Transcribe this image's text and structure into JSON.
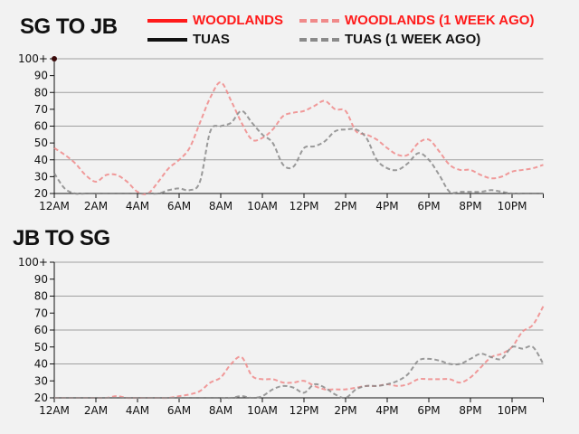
{
  "legend": [
    {
      "label": "WOODLANDS",
      "color": "#ff1a1a",
      "style": "solid"
    },
    {
      "label": "WOODLANDS (1 WEEK AGO)",
      "color": "#f08a8a",
      "style": "dashed"
    },
    {
      "label": "TUAS",
      "color": "#111111",
      "style": "solid"
    },
    {
      "label": "TUAS (1 WEEK AGO)",
      "color": "#8a8a8a",
      "style": "dashed"
    }
  ],
  "chart_data": [
    {
      "type": "line",
      "title": "SG TO JB",
      "xlabel": "",
      "ylabel": "",
      "x_unit": "hour of day",
      "x": [
        0,
        0.5,
        1,
        1.5,
        2,
        2.5,
        3,
        3.5,
        4,
        4.5,
        5,
        5.5,
        6,
        6.5,
        7,
        7.5,
        8,
        8.5,
        9,
        9.5,
        10,
        10.5,
        11,
        11.5,
        12,
        12.5,
        13,
        13.5,
        14,
        14.5,
        15,
        15.5,
        16,
        16.5,
        17,
        17.5,
        18,
        18.5,
        19,
        19.5,
        20,
        20.5,
        21,
        21.5,
        22,
        22.5,
        23,
        23.5
      ],
      "xticks": [
        "12AM",
        "2AM",
        "4AM",
        "6AM",
        "8AM",
        "10AM",
        "12PM",
        "2PM",
        "4PM",
        "6PM",
        "8PM",
        "10PM"
      ],
      "yticks": [
        "20",
        "30",
        "40",
        "50",
        "60",
        "70",
        "80",
        "90",
        "100+"
      ],
      "ylim": [
        20,
        100
      ],
      "grid": true,
      "current_point": {
        "series": "WOODLANDS",
        "x": 0,
        "y": 100
      },
      "series": [
        {
          "name": "WOODLANDS (1 WEEK AGO)",
          "values": [
            47,
            43,
            38,
            31,
            27,
            31,
            31,
            27,
            21,
            20,
            27,
            35,
            40,
            47,
            62,
            77,
            86,
            75,
            62,
            52,
            53,
            58,
            66,
            68,
            69,
            72,
            75,
            70,
            69,
            57,
            55,
            52,
            47,
            43,
            43,
            50,
            52,
            45,
            37,
            34,
            34,
            31,
            29,
            30,
            33,
            34,
            35,
            37
          ]
        },
        {
          "name": "TUAS (1 WEEK AGO)",
          "values": [
            32,
            23,
            20,
            20,
            20,
            20,
            20,
            20,
            20,
            20,
            20,
            22,
            23,
            22,
            27,
            57,
            60,
            62,
            69,
            62,
            55,
            50,
            37,
            36,
            47,
            48,
            51,
            57,
            58,
            58,
            53,
            40,
            35,
            34,
            38,
            44,
            40,
            31,
            21,
            21,
            21,
            21,
            22,
            21,
            20,
            20,
            20,
            20
          ]
        }
      ]
    },
    {
      "type": "line",
      "title": "JB TO SG",
      "xlabel": "",
      "ylabel": "",
      "x_unit": "hour of day",
      "x": [
        0,
        0.5,
        1,
        1.5,
        2,
        2.5,
        3,
        3.5,
        4,
        4.5,
        5,
        5.5,
        6,
        6.5,
        7,
        7.5,
        8,
        8.5,
        9,
        9.5,
        10,
        10.5,
        11,
        11.5,
        12,
        12.5,
        13,
        13.5,
        14,
        14.5,
        15,
        15.5,
        16,
        16.5,
        17,
        17.5,
        18,
        18.5,
        19,
        19.5,
        20,
        20.5,
        21,
        21.5,
        22,
        22.5,
        23,
        23.5
      ],
      "xticks": [
        "12AM",
        "2AM",
        "4AM",
        "6AM",
        "8AM",
        "10AM",
        "12PM",
        "2PM",
        "4PM",
        "6PM",
        "8PM",
        "10PM"
      ],
      "yticks": [
        "20",
        "30",
        "40",
        "50",
        "60",
        "70",
        "80",
        "90",
        "100+"
      ],
      "ylim": [
        20,
        100
      ],
      "grid": true,
      "series": [
        {
          "name": "WOODLANDS (1 WEEK AGO)",
          "values": [
            20,
            20,
            20,
            20,
            20,
            20,
            21,
            20,
            20,
            20,
            20,
            20,
            21,
            22,
            24,
            29,
            32,
            40,
            44,
            33,
            31,
            31,
            29,
            29,
            30,
            27,
            25,
            25,
            25,
            26,
            27,
            27,
            28,
            27,
            28,
            31,
            31,
            31,
            31,
            29,
            32,
            38,
            44,
            46,
            50,
            59,
            63,
            74
          ]
        },
        {
          "name": "TUAS (1 WEEK AGO)",
          "values": [
            20,
            20,
            20,
            20,
            20,
            20,
            20,
            20,
            20,
            20,
            20,
            20,
            20,
            20,
            20,
            20,
            20,
            20,
            21,
            20,
            21,
            25,
            27,
            26,
            23,
            28,
            26,
            22,
            20,
            25,
            27,
            27,
            28,
            30,
            34,
            42,
            43,
            42,
            40,
            40,
            43,
            46,
            44,
            43,
            50,
            49,
            50,
            40
          ]
        }
      ]
    }
  ]
}
